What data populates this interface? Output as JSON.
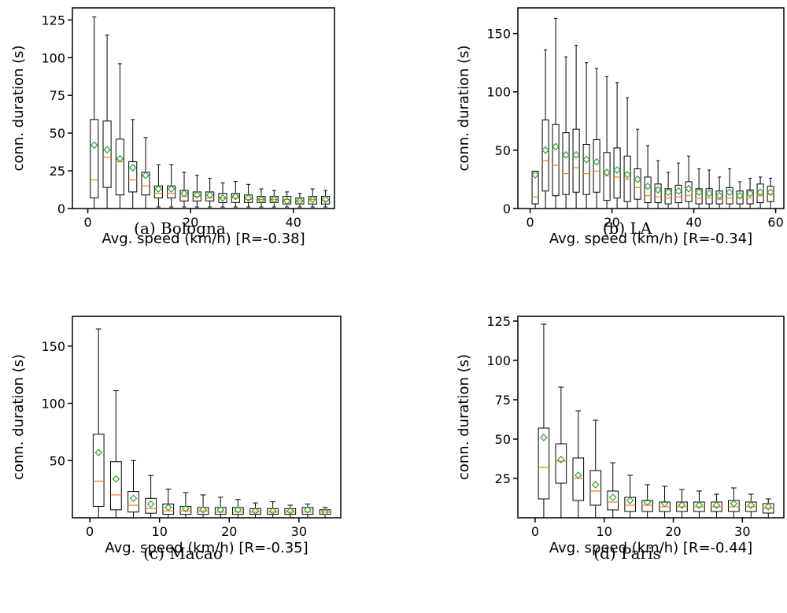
{
  "chart_data": [
    {
      "type": "box",
      "caption": "(a) Bologna",
      "xlabel": "Avg. speed (km/h) [R=-0.38]",
      "ylabel": "conn. duration (s)",
      "xlim": [
        -3,
        48
      ],
      "ylim": [
        0,
        133
      ],
      "xticks": [
        0,
        20,
        40
      ],
      "yticks": [
        0,
        25,
        50,
        75,
        100,
        125
      ],
      "boxes": [
        {
          "x": 1.25,
          "lo": 0,
          "q1": 7,
          "med": 19,
          "q3": 59,
          "hi": 127,
          "mean": 42
        },
        {
          "x": 3.75,
          "lo": 0,
          "q1": 14,
          "med": 34,
          "q3": 58,
          "hi": 115,
          "mean": 39
        },
        {
          "x": 6.25,
          "lo": 0,
          "q1": 9,
          "med": 31,
          "q3": 46,
          "hi": 96,
          "mean": 33
        },
        {
          "x": 8.75,
          "lo": 0,
          "q1": 11,
          "med": 19,
          "q3": 31,
          "hi": 59,
          "mean": 27
        },
        {
          "x": 11.25,
          "lo": 0,
          "q1": 9,
          "med": 15,
          "q3": 24,
          "hi": 47,
          "mean": 22
        },
        {
          "x": 13.75,
          "lo": 1,
          "q1": 7,
          "med": 10,
          "q3": 15,
          "hi": 29,
          "mean": 13
        },
        {
          "x": 16.25,
          "lo": 1,
          "q1": 7,
          "med": 10,
          "q3": 15,
          "hi": 29,
          "mean": 13
        },
        {
          "x": 18.75,
          "lo": 1,
          "q1": 5,
          "med": 8,
          "q3": 12,
          "hi": 24,
          "mean": 10
        },
        {
          "x": 21.25,
          "lo": 1,
          "q1": 5,
          "med": 8,
          "q3": 11,
          "hi": 22,
          "mean": 9
        },
        {
          "x": 23.75,
          "lo": 1,
          "q1": 5,
          "med": 7,
          "q3": 11,
          "hi": 20,
          "mean": 9
        },
        {
          "x": 26.25,
          "lo": 1,
          "q1": 4,
          "med": 7,
          "q3": 10,
          "hi": 17,
          "mean": 7
        },
        {
          "x": 28.75,
          "lo": 1,
          "q1": 4,
          "med": 7,
          "q3": 10,
          "hi": 18,
          "mean": 8
        },
        {
          "x": 31.25,
          "lo": 1,
          "q1": 4,
          "med": 6,
          "q3": 9,
          "hi": 16,
          "mean": 7
        },
        {
          "x": 33.75,
          "lo": 1,
          "q1": 4,
          "med": 6,
          "q3": 8,
          "hi": 13,
          "mean": 6
        },
        {
          "x": 36.25,
          "lo": 1,
          "q1": 4,
          "med": 6,
          "q3": 8,
          "hi": 12,
          "mean": 6
        },
        {
          "x": 38.75,
          "lo": 1,
          "q1": 3,
          "med": 6,
          "q3": 8,
          "hi": 11,
          "mean": 5
        },
        {
          "x": 41.25,
          "lo": 1,
          "q1": 3,
          "med": 5,
          "q3": 7,
          "hi": 10,
          "mean": 5
        },
        {
          "x": 43.75,
          "lo": 1,
          "q1": 3,
          "med": 6,
          "q3": 8,
          "hi": 13,
          "mean": 6
        },
        {
          "x": 46.25,
          "lo": 1,
          "q1": 3,
          "med": 5,
          "q3": 8,
          "hi": 12,
          "mean": 6
        }
      ]
    },
    {
      "type": "box",
      "caption": "(b) LA",
      "xlabel": "Avg. speed (km/h) [R=-0.34]",
      "ylabel": "conn. duration (s)",
      "xlim": [
        -3,
        62
      ],
      "ylim": [
        0,
        172
      ],
      "xticks": [
        0,
        20,
        40,
        60
      ],
      "yticks": [
        0,
        50,
        100,
        150
      ],
      "boxes": [
        {
          "x": 1.25,
          "lo": 0,
          "q1": 4,
          "med": 10,
          "q3": 32,
          "hi": 32,
          "mean": 29
        },
        {
          "x": 3.75,
          "lo": 0,
          "q1": 15,
          "med": 41,
          "q3": 76,
          "hi": 136,
          "mean": 50
        },
        {
          "x": 6.25,
          "lo": 0,
          "q1": 11,
          "med": 37,
          "q3": 72,
          "hi": 163,
          "mean": 53
        },
        {
          "x": 8.75,
          "lo": 0,
          "q1": 12,
          "med": 30,
          "q3": 65,
          "hi": 130,
          "mean": 46
        },
        {
          "x": 11.25,
          "lo": 0,
          "q1": 14,
          "med": 35,
          "q3": 68,
          "hi": 140,
          "mean": 46
        },
        {
          "x": 13.75,
          "lo": 0,
          "q1": 12,
          "med": 30,
          "q3": 55,
          "hi": 125,
          "mean": 42
        },
        {
          "x": 16.25,
          "lo": 0,
          "q1": 14,
          "med": 32,
          "q3": 59,
          "hi": 120,
          "mean": 40
        },
        {
          "x": 18.75,
          "lo": 0,
          "q1": 7,
          "med": 28,
          "q3": 48,
          "hi": 113,
          "mean": 31
        },
        {
          "x": 21.25,
          "lo": 0,
          "q1": 9,
          "med": 27,
          "q3": 52,
          "hi": 108,
          "mean": 33
        },
        {
          "x": 23.75,
          "lo": 0,
          "q1": 6,
          "med": 25,
          "q3": 45,
          "hi": 95,
          "mean": 29
        },
        {
          "x": 26.25,
          "lo": 0,
          "q1": 8,
          "med": 18,
          "q3": 34,
          "hi": 68,
          "mean": 25
        },
        {
          "x": 28.75,
          "lo": 0,
          "q1": 5,
          "med": 11,
          "q3": 27,
          "hi": 54,
          "mean": 19
        },
        {
          "x": 31.25,
          "lo": 0,
          "q1": 5,
          "med": 10,
          "q3": 21,
          "hi": 41,
          "mean": 16
        },
        {
          "x": 33.75,
          "lo": 0,
          "q1": 4,
          "med": 9,
          "q3": 17,
          "hi": 31,
          "mean": 14
        },
        {
          "x": 36.25,
          "lo": 0,
          "q1": 5,
          "med": 10,
          "q3": 20,
          "hi": 39,
          "mean": 15
        },
        {
          "x": 38.75,
          "lo": 0,
          "q1": 6,
          "med": 11,
          "q3": 23,
          "hi": 45,
          "mean": 17
        },
        {
          "x": 41.25,
          "lo": 0,
          "q1": 4,
          "med": 9,
          "q3": 17,
          "hi": 34,
          "mean": 14
        },
        {
          "x": 43.75,
          "lo": 0,
          "q1": 4,
          "med": 9,
          "q3": 17,
          "hi": 33,
          "mean": 13
        },
        {
          "x": 46.25,
          "lo": 0,
          "q1": 4,
          "med": 8,
          "q3": 15,
          "hi": 27,
          "mean": 11
        },
        {
          "x": 48.75,
          "lo": 0,
          "q1": 4,
          "med": 9,
          "q3": 18,
          "hi": 34,
          "mean": 14
        },
        {
          "x": 51.25,
          "lo": 0,
          "q1": 4,
          "med": 9,
          "q3": 15,
          "hi": 23,
          "mean": 11
        },
        {
          "x": 53.75,
          "lo": 0,
          "q1": 4,
          "med": 9,
          "q3": 16,
          "hi": 26,
          "mean": 13
        },
        {
          "x": 56.25,
          "lo": 0,
          "q1": 5,
          "med": 11,
          "q3": 21,
          "hi": 27,
          "mean": 14
        },
        {
          "x": 58.75,
          "lo": 0,
          "q1": 6,
          "med": 12,
          "q3": 19,
          "hi": 26,
          "mean": 14
        }
      ]
    },
    {
      "type": "box",
      "caption": "(c) Macao",
      "xlabel": "Avg. speed (km/h) [R=-0.35]",
      "ylabel": "conn. duration (s)",
      "xlim": [
        -2.5,
        36
      ],
      "ylim": [
        0,
        176
      ],
      "xticks": [
        0,
        10,
        20,
        30
      ],
      "yticks": [
        50,
        100,
        150
      ],
      "boxes": [
        {
          "x": 1.25,
          "lo": 0,
          "q1": 10,
          "med": 32,
          "q3": 73,
          "hi": 165,
          "mean": 57
        },
        {
          "x": 3.75,
          "lo": 0,
          "q1": 7,
          "med": 20,
          "q3": 49,
          "hi": 111,
          "mean": 34
        },
        {
          "x": 6.25,
          "lo": 0,
          "q1": 5,
          "med": 11,
          "q3": 23,
          "hi": 50,
          "mean": 17
        },
        {
          "x": 8.75,
          "lo": 0,
          "q1": 4,
          "med": 8,
          "q3": 17,
          "hi": 37,
          "mean": 12
        },
        {
          "x": 11.25,
          "lo": 0,
          "q1": 3,
          "med": 6,
          "q3": 12,
          "hi": 25,
          "mean": 9
        },
        {
          "x": 13.75,
          "lo": 0,
          "q1": 3,
          "med": 6,
          "q3": 10,
          "hi": 22,
          "mean": 8
        },
        {
          "x": 16.25,
          "lo": 0,
          "q1": 3,
          "med": 6,
          "q3": 9,
          "hi": 20,
          "mean": 7
        },
        {
          "x": 18.75,
          "lo": 0,
          "q1": 3,
          "med": 5,
          "q3": 9,
          "hi": 18,
          "mean": 7
        },
        {
          "x": 21.25,
          "lo": 0,
          "q1": 3,
          "med": 5,
          "q3": 9,
          "hi": 16,
          "mean": 7
        },
        {
          "x": 23.75,
          "lo": 0,
          "q1": 3,
          "med": 5,
          "q3": 8,
          "hi": 13,
          "mean": 6
        },
        {
          "x": 26.25,
          "lo": 0,
          "q1": 3,
          "med": 5,
          "q3": 8,
          "hi": 14,
          "mean": 6
        },
        {
          "x": 28.75,
          "lo": 0,
          "q1": 3,
          "med": 5,
          "q3": 8,
          "hi": 11,
          "mean": 6
        },
        {
          "x": 31.25,
          "lo": 0,
          "q1": 3,
          "med": 5,
          "q3": 9,
          "hi": 12,
          "mean": 7
        },
        {
          "x": 33.75,
          "lo": 0,
          "q1": 3,
          "med": 5,
          "q3": 7,
          "hi": 9,
          "mean": 5
        }
      ]
    },
    {
      "type": "box",
      "caption": "(d) Paris",
      "xlabel": "Avg. speed (km/h) [R=-0.44]",
      "ylabel": "conn. duration (s)",
      "xlim": [
        -2.5,
        36
      ],
      "ylim": [
        0,
        128
      ],
      "xticks": [
        0,
        10,
        20,
        30
      ],
      "yticks": [
        25,
        50,
        75,
        100,
        125
      ],
      "boxes": [
        {
          "x": 1.25,
          "lo": 0,
          "q1": 12,
          "med": 32,
          "q3": 57,
          "hi": 123,
          "mean": 51
        },
        {
          "x": 3.75,
          "lo": 0,
          "q1": 22,
          "med": 36,
          "q3": 47,
          "hi": 83,
          "mean": 37
        },
        {
          "x": 6.25,
          "lo": 0,
          "q1": 11,
          "med": 25,
          "q3": 38,
          "hi": 68,
          "mean": 27
        },
        {
          "x": 8.75,
          "lo": 0,
          "q1": 8,
          "med": 17,
          "q3": 30,
          "hi": 62,
          "mean": 21
        },
        {
          "x": 11.25,
          "lo": 0,
          "q1": 5,
          "med": 10,
          "q3": 17,
          "hi": 35,
          "mean": 13
        },
        {
          "x": 13.75,
          "lo": 0,
          "q1": 4,
          "med": 8,
          "q3": 13,
          "hi": 27,
          "mean": 11
        },
        {
          "x": 16.25,
          "lo": 0,
          "q1": 4,
          "med": 8,
          "q3": 11,
          "hi": 21,
          "mean": 10
        },
        {
          "x": 18.75,
          "lo": 0,
          "q1": 4,
          "med": 7,
          "q3": 10,
          "hi": 20,
          "mean": 9
        },
        {
          "x": 21.25,
          "lo": 0,
          "q1": 4,
          "med": 7,
          "q3": 10,
          "hi": 18,
          "mean": 8
        },
        {
          "x": 23.75,
          "lo": 0,
          "q1": 4,
          "med": 7,
          "q3": 10,
          "hi": 17,
          "mean": 8
        },
        {
          "x": 26.25,
          "lo": 0,
          "q1": 4,
          "med": 7,
          "q3": 10,
          "hi": 15,
          "mean": 8
        },
        {
          "x": 28.75,
          "lo": 0,
          "q1": 4,
          "med": 7,
          "q3": 11,
          "hi": 19,
          "mean": 9
        },
        {
          "x": 31.25,
          "lo": 0,
          "q1": 4,
          "med": 7,
          "q3": 10,
          "hi": 15,
          "mean": 8
        },
        {
          "x": 33.75,
          "lo": 0,
          "q1": 3,
          "med": 6,
          "q3": 9,
          "hi": 12,
          "mean": 7
        }
      ]
    }
  ],
  "colors": {
    "box": "#000000",
    "median": "#ff7f0e",
    "mean": "#2ca02c"
  }
}
